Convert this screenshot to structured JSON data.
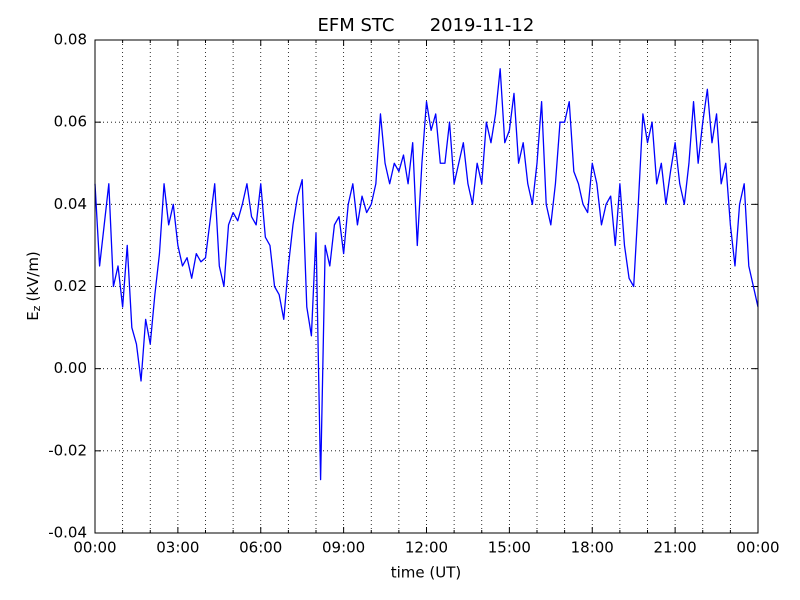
{
  "chart_data": {
    "type": "line",
    "title": "EFM STC",
    "subtitle": "2019-11-12",
    "xlabel": "time (UT)",
    "ylabel": {
      "main": "E",
      "sub": "z",
      "unit": "(kV/m)"
    },
    "x": [
      0,
      10,
      20,
      30,
      40,
      50,
      60,
      70,
      80,
      90,
      100,
      110,
      120,
      130,
      140,
      150,
      160,
      170,
      180,
      190,
      200,
      210,
      220,
      230,
      240,
      250,
      260,
      270,
      280,
      290,
      300,
      310,
      320,
      330,
      340,
      350,
      360,
      370,
      380,
      390,
      400,
      410,
      420,
      430,
      440,
      450,
      460,
      470,
      480,
      490,
      500,
      510,
      520,
      530,
      540,
      550,
      560,
      570,
      580,
      590,
      600,
      610,
      620,
      630,
      640,
      650,
      660,
      670,
      680,
      690,
      700,
      710,
      720,
      730,
      740,
      750,
      760,
      770,
      780,
      790,
      800,
      810,
      820,
      830,
      840,
      850,
      860,
      870,
      880,
      890,
      900,
      910,
      920,
      930,
      940,
      950,
      960,
      970,
      980,
      990,
      1000,
      1010,
      1020,
      1030,
      1040,
      1050,
      1060,
      1070,
      1080,
      1090,
      1100,
      1110,
      1120,
      1130,
      1140,
      1150,
      1160,
      1170,
      1180,
      1190,
      1200,
      1210,
      1220,
      1230,
      1240,
      1250,
      1260,
      1270,
      1280,
      1290,
      1300,
      1310,
      1320,
      1330,
      1340,
      1350,
      1360,
      1370,
      1380,
      1390,
      1400,
      1410,
      1420,
      1430,
      1440
    ],
    "series": [
      {
        "name": "Ez",
        "color": "#0000ff",
        "values": [
          0.045,
          0.025,
          0.035,
          0.045,
          0.02,
          0.025,
          0.015,
          0.03,
          0.01,
          0.006,
          -0.003,
          0.012,
          0.006,
          0.018,
          0.028,
          0.045,
          0.035,
          0.04,
          0.03,
          0.025,
          0.027,
          0.022,
          0.028,
          0.026,
          0.027,
          0.036,
          0.045,
          0.025,
          0.02,
          0.035,
          0.038,
          0.036,
          0.04,
          0.045,
          0.037,
          0.035,
          0.045,
          0.032,
          0.03,
          0.02,
          0.018,
          0.012,
          0.025,
          0.035,
          0.042,
          0.046,
          0.015,
          0.008,
          0.033,
          -0.027,
          0.03,
          0.025,
          0.035,
          0.037,
          0.028,
          0.04,
          0.045,
          0.035,
          0.042,
          0.038,
          0.04,
          0.045,
          0.062,
          0.05,
          0.045,
          0.05,
          0.048,
          0.052,
          0.045,
          0.055,
          0.03,
          0.05,
          0.065,
          0.058,
          0.062,
          0.05,
          0.05,
          0.06,
          0.045,
          0.05,
          0.055,
          0.045,
          0.04,
          0.05,
          0.045,
          0.06,
          0.055,
          0.062,
          0.073,
          0.055,
          0.058,
          0.067,
          0.05,
          0.055,
          0.045,
          0.04,
          0.05,
          0.065,
          0.04,
          0.035,
          0.045,
          0.06,
          0.06,
          0.065,
          0.048,
          0.045,
          0.04,
          0.038,
          0.05,
          0.045,
          0.035,
          0.04,
          0.042,
          0.03,
          0.045,
          0.03,
          0.022,
          0.02,
          0.04,
          0.062,
          0.055,
          0.06,
          0.045,
          0.05,
          0.04,
          0.048,
          0.055,
          0.045,
          0.04,
          0.05,
          0.065,
          0.05,
          0.06,
          0.068,
          0.055,
          0.062,
          0.045,
          0.05,
          0.035,
          0.025,
          0.04,
          0.045,
          0.025,
          0.02,
          0.015
        ]
      }
    ],
    "xlim": [
      0,
      1440
    ],
    "xticks": [
      {
        "value": 0,
        "label": "00:00"
      },
      {
        "value": 180,
        "label": "03:00"
      },
      {
        "value": 360,
        "label": "06:00"
      },
      {
        "value": 540,
        "label": "09:00"
      },
      {
        "value": 720,
        "label": "12:00"
      },
      {
        "value": 900,
        "label": "15:00"
      },
      {
        "value": 1080,
        "label": "18:00"
      },
      {
        "value": 1260,
        "label": "21:00"
      },
      {
        "value": 1440,
        "label": "00:00"
      }
    ],
    "xminorticks": [
      60,
      120,
      240,
      300,
      420,
      480,
      600,
      660,
      780,
      840,
      960,
      1020,
      1140,
      1200,
      1320,
      1380
    ],
    "ylim": [
      -0.04,
      0.08
    ],
    "yticks": [
      -0.04,
      -0.02,
      {
        "value": 0,
        "label": "0.00"
      },
      0.02,
      0.04,
      0.06,
      0.08
    ],
    "grid": true
  }
}
